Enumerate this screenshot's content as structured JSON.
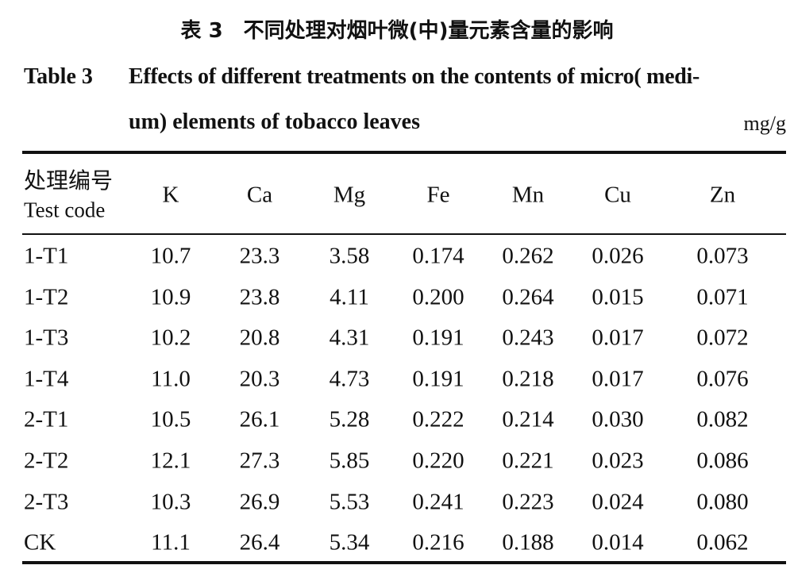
{
  "caption_cn": "表 3　不同处理对烟叶微(中)量元素含量的影响",
  "caption_en": {
    "label": "Table 3",
    "lines": [
      "Effects of different treatments on the contents of micro( medi-",
      "um) elements of tobacco leaves"
    ]
  },
  "unit": "mg/g",
  "table": {
    "header": [
      [
        "处理编号",
        "Test code"
      ],
      "K",
      "Ca",
      "Mg",
      "Fe",
      "Mn",
      "Cu",
      "Zn"
    ],
    "rows": [
      [
        "1-T1",
        "10.7",
        "23.3",
        "3.58",
        "0.174",
        "0.262",
        "0.026",
        "0.073"
      ],
      [
        "1-T2",
        "10.9",
        "23.8",
        "4.11",
        "0.200",
        "0.264",
        "0.015",
        "0.071"
      ],
      [
        "1-T3",
        "10.2",
        "20.8",
        "4.31",
        "0.191",
        "0.243",
        "0.017",
        "0.072"
      ],
      [
        "1-T4",
        "11.0",
        "20.3",
        "4.73",
        "0.191",
        "0.218",
        "0.017",
        "0.076"
      ],
      [
        "2-T1",
        "10.5",
        "26.1",
        "5.28",
        "0.222",
        "0.214",
        "0.030",
        "0.082"
      ],
      [
        "2-T2",
        "12.1",
        "27.3",
        "5.85",
        "0.220",
        "0.221",
        "0.023",
        "0.086"
      ],
      [
        "2-T3",
        "10.3",
        "26.9",
        "5.53",
        "0.241",
        "0.223",
        "0.024",
        "0.080"
      ],
      [
        "CK",
        "11.1",
        "26.4",
        "5.34",
        "0.216",
        "0.188",
        "0.014",
        "0.062"
      ]
    ]
  }
}
